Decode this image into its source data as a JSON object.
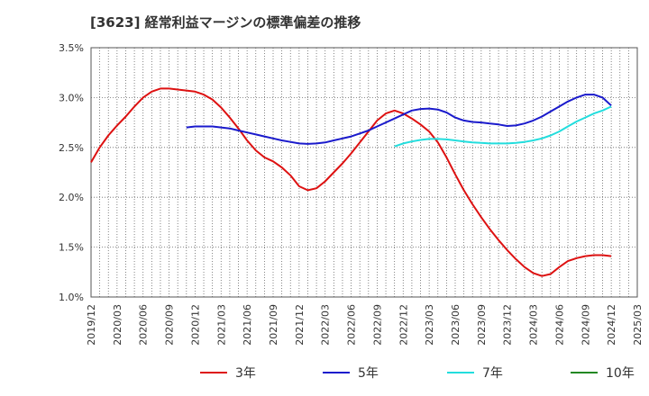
{
  "chart_data": {
    "type": "line",
    "title": "[3623]  経常利益マージンの標準偏差の推移",
    "xlabel": "",
    "ylabel": "",
    "ylim": [
      1.0,
      3.5
    ],
    "y_ticks": [
      "1.0%",
      "1.5%",
      "2.0%",
      "2.5%",
      "3.0%",
      "3.5%"
    ],
    "x_ticks": [
      "2019/12",
      "2020/03",
      "2020/06",
      "2020/09",
      "2020/12",
      "2021/03",
      "2021/06",
      "2021/09",
      "2021/12",
      "2022/03",
      "2022/06",
      "2022/09",
      "2022/12",
      "2023/03",
      "2023/06",
      "2023/09",
      "2023/12",
      "2024/03",
      "2024/06",
      "2024/09",
      "2024/12",
      "2025/03"
    ],
    "grid": true,
    "legend_position": "bottom",
    "series": [
      {
        "name": "3年",
        "color": "#dd1111",
        "points": [
          [
            "2019/12",
            2.35
          ],
          [
            "2020/01",
            2.5
          ],
          [
            "2020/02",
            2.62
          ],
          [
            "2020/03",
            2.72
          ],
          [
            "2020/04",
            2.81
          ],
          [
            "2020/05",
            2.91
          ],
          [
            "2020/06",
            3.0
          ],
          [
            "2020/07",
            3.06
          ],
          [
            "2020/08",
            3.09
          ],
          [
            "2020/09",
            3.09
          ],
          [
            "2020/10",
            3.08
          ],
          [
            "2020/11",
            3.07
          ],
          [
            "2020/12",
            3.06
          ],
          [
            "2021/01",
            3.03
          ],
          [
            "2021/02",
            2.98
          ],
          [
            "2021/03",
            2.9
          ],
          [
            "2021/04",
            2.8
          ],
          [
            "2021/05",
            2.69
          ],
          [
            "2021/06",
            2.57
          ],
          [
            "2021/07",
            2.47
          ],
          [
            "2021/08",
            2.4
          ],
          [
            "2021/09",
            2.36
          ],
          [
            "2021/10",
            2.3
          ],
          [
            "2021/11",
            2.22
          ],
          [
            "2021/12",
            2.11
          ],
          [
            "2022/01",
            2.07
          ],
          [
            "2022/02",
            2.09
          ],
          [
            "2022/03",
            2.16
          ],
          [
            "2022/04",
            2.25
          ],
          [
            "2022/05",
            2.34
          ],
          [
            "2022/06",
            2.44
          ],
          [
            "2022/07",
            2.55
          ],
          [
            "2022/08",
            2.66
          ],
          [
            "2022/09",
            2.77
          ],
          [
            "2022/10",
            2.84
          ],
          [
            "2022/11",
            2.87
          ],
          [
            "2022/12",
            2.84
          ],
          [
            "2023/01",
            2.79
          ],
          [
            "2023/02",
            2.73
          ],
          [
            "2023/03",
            2.66
          ],
          [
            "2023/04",
            2.55
          ],
          [
            "2023/05",
            2.4
          ],
          [
            "2023/06",
            2.23
          ],
          [
            "2023/07",
            2.07
          ],
          [
            "2023/08",
            1.93
          ],
          [
            "2023/09",
            1.8
          ],
          [
            "2023/10",
            1.68
          ],
          [
            "2023/11",
            1.57
          ],
          [
            "2023/12",
            1.47
          ],
          [
            "2024/01",
            1.38
          ],
          [
            "2024/02",
            1.3
          ],
          [
            "2024/03",
            1.24
          ],
          [
            "2024/04",
            1.21
          ],
          [
            "2024/05",
            1.23
          ],
          [
            "2024/06",
            1.3
          ],
          [
            "2024/07",
            1.36
          ],
          [
            "2024/08",
            1.39
          ],
          [
            "2024/09",
            1.41
          ],
          [
            "2024/10",
            1.42
          ],
          [
            "2024/11",
            1.42
          ],
          [
            "2024/12",
            1.41
          ]
        ]
      },
      {
        "name": "5年",
        "color": "#1a1acc",
        "points": [
          [
            "2020/11",
            2.7
          ],
          [
            "2020/12",
            2.71
          ],
          [
            "2021/01",
            2.71
          ],
          [
            "2021/02",
            2.71
          ],
          [
            "2021/03",
            2.7
          ],
          [
            "2021/04",
            2.69
          ],
          [
            "2021/05",
            2.67
          ],
          [
            "2021/06",
            2.65
          ],
          [
            "2021/07",
            2.63
          ],
          [
            "2021/08",
            2.61
          ],
          [
            "2021/09",
            2.59
          ],
          [
            "2021/10",
            2.57
          ],
          [
            "2021/11",
            2.555
          ],
          [
            "2021/12",
            2.54
          ],
          [
            "2022/01",
            2.535
          ],
          [
            "2022/02",
            2.54
          ],
          [
            "2022/03",
            2.55
          ],
          [
            "2022/04",
            2.57
          ],
          [
            "2022/05",
            2.59
          ],
          [
            "2022/06",
            2.61
          ],
          [
            "2022/07",
            2.64
          ],
          [
            "2022/08",
            2.67
          ],
          [
            "2022/09",
            2.71
          ],
          [
            "2022/10",
            2.75
          ],
          [
            "2022/11",
            2.79
          ],
          [
            "2022/12",
            2.83
          ],
          [
            "2023/01",
            2.87
          ],
          [
            "2023/02",
            2.885
          ],
          [
            "2023/03",
            2.89
          ],
          [
            "2023/04",
            2.88
          ],
          [
            "2023/05",
            2.85
          ],
          [
            "2023/06",
            2.8
          ],
          [
            "2023/07",
            2.77
          ],
          [
            "2023/08",
            2.755
          ],
          [
            "2023/09",
            2.75
          ],
          [
            "2023/10",
            2.74
          ],
          [
            "2023/11",
            2.73
          ],
          [
            "2023/12",
            2.715
          ],
          [
            "2024/01",
            2.72
          ],
          [
            "2024/02",
            2.74
          ],
          [
            "2024/03",
            2.77
          ],
          [
            "2024/04",
            2.81
          ],
          [
            "2024/05",
            2.86
          ],
          [
            "2024/06",
            2.91
          ],
          [
            "2024/07",
            2.96
          ],
          [
            "2024/08",
            3.0
          ],
          [
            "2024/09",
            3.03
          ],
          [
            "2024/10",
            3.03
          ],
          [
            "2024/11",
            3.0
          ],
          [
            "2024/12",
            2.92
          ]
        ]
      },
      {
        "name": "7年",
        "color": "#22dddd",
        "points": [
          [
            "2022/11",
            2.51
          ],
          [
            "2022/12",
            2.54
          ],
          [
            "2023/01",
            2.56
          ],
          [
            "2023/02",
            2.575
          ],
          [
            "2023/03",
            2.585
          ],
          [
            "2023/04",
            2.585
          ],
          [
            "2023/05",
            2.58
          ],
          [
            "2023/06",
            2.57
          ],
          [
            "2023/07",
            2.56
          ],
          [
            "2023/08",
            2.55
          ],
          [
            "2023/09",
            2.545
          ],
          [
            "2023/10",
            2.54
          ],
          [
            "2023/11",
            2.54
          ],
          [
            "2023/12",
            2.54
          ],
          [
            "2024/01",
            2.545
          ],
          [
            "2024/02",
            2.555
          ],
          [
            "2024/03",
            2.57
          ],
          [
            "2024/04",
            2.59
          ],
          [
            "2024/05",
            2.62
          ],
          [
            "2024/06",
            2.66
          ],
          [
            "2024/07",
            2.71
          ],
          [
            "2024/08",
            2.76
          ],
          [
            "2024/09",
            2.8
          ],
          [
            "2024/10",
            2.84
          ],
          [
            "2024/11",
            2.87
          ],
          [
            "2024/12",
            2.91
          ]
        ]
      },
      {
        "name": "10年",
        "color": "#228822",
        "points": []
      }
    ]
  }
}
